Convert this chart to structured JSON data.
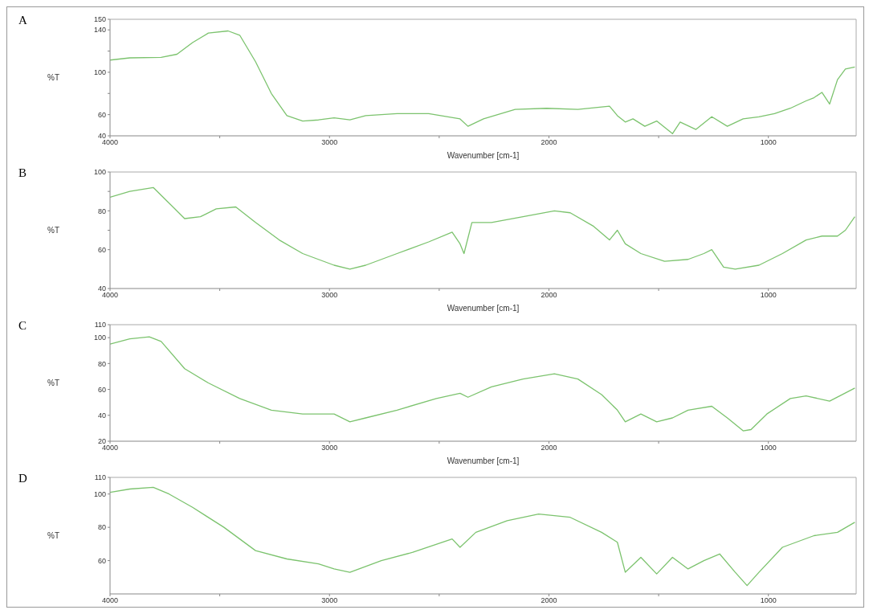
{
  "chart_data": [
    {
      "type": "line",
      "title": "A",
      "xlabel": "Wavenumber [cm-1]",
      "ylabel": "%T",
      "xlim": [
        4000,
        600
      ],
      "xticks": [
        4000,
        {
          "value": 3500,
          "label": null
        },
        3000,
        {
          "value": 2500,
          "label": null
        },
        2000,
        {
          "value": 1500,
          "label": null
        },
        1000
      ],
      "ylim": [
        40,
        150
      ],
      "yticks": [
        40,
        60,
        {
          "value": 80,
          "label": null
        },
        100,
        {
          "value": 120,
          "label": null
        },
        140,
        150
      ],
      "x": [
        4000,
        3910,
        3767,
        3695,
        3624,
        3552,
        3462,
        3409,
        3337,
        3265,
        3194,
        3122,
        3050,
        2979,
        2907,
        2835,
        2692,
        2548,
        2405,
        2369,
        2298,
        2154,
        2011,
        1868,
        1724,
        1688,
        1652,
        1617,
        1563,
        1509,
        1437,
        1402,
        1330,
        1258,
        1187,
        1115,
        1043,
        972,
        900,
        828,
        792,
        756,
        721,
        685,
        649,
        606
      ],
      "series": [
        {
          "color": "#7cc36e",
          "values": [
            111.5,
            113.6,
            114,
            117,
            128,
            137,
            139,
            135,
            110,
            80,
            59,
            54,
            55,
            57,
            55,
            59,
            61,
            61,
            56,
            49,
            56,
            65,
            66,
            65,
            68,
            59,
            53,
            56,
            49,
            54,
            42,
            53,
            46,
            58,
            49,
            56,
            58,
            61,
            66,
            73,
            76,
            81,
            70,
            93,
            103,
            105
          ]
        }
      ]
    },
    {
      "type": "line",
      "title": "B",
      "xlabel": "Wavenumber [cm-1]",
      "ylabel": "%T",
      "xlim": [
        4000,
        600
      ],
      "xticks": [
        4000,
        {
          "value": 3500,
          "label": null
        },
        3000,
        {
          "value": 2500,
          "label": null
        },
        2000,
        {
          "value": 1500,
          "label": null
        },
        1000
      ],
      "ylim": [
        40,
        100
      ],
      "yticks": [
        40,
        60,
        {
          "value": 70,
          "label": null
        },
        80,
        {
          "value": 90,
          "label": null
        },
        100
      ],
      "x": [
        4000,
        3910,
        3803,
        3731,
        3660,
        3588,
        3516,
        3427,
        3337,
        3229,
        3122,
        2979,
        2907,
        2835,
        2692,
        2548,
        2441,
        2405,
        2387,
        2351,
        2262,
        2118,
        1975,
        1903,
        1796,
        1724,
        1688,
        1652,
        1581,
        1473,
        1366,
        1294,
        1258,
        1204,
        1151,
        1043,
        936,
        828,
        756,
        685,
        649,
        606
      ],
      "series": [
        {
          "color": "#7cc36e",
          "values": [
            87,
            90,
            92,
            84,
            76,
            77,
            81,
            82,
            74,
            65,
            58,
            52,
            50,
            52,
            58,
            64,
            69,
            63,
            58,
            74,
            74,
            77,
            80,
            79,
            72,
            65,
            70,
            63,
            58,
            54,
            55,
            58,
            60,
            51,
            50,
            52,
            58,
            65,
            67,
            67,
            70,
            77
          ]
        }
      ]
    },
    {
      "type": "line",
      "title": "C",
      "xlabel": "Wavenumber [cm-1]",
      "ylabel": "%T",
      "xlim": [
        4000,
        600
      ],
      "xticks": [
        4000,
        {
          "value": 3500,
          "label": null
        },
        3000,
        {
          "value": 2500,
          "label": null
        },
        2000,
        {
          "value": 1500,
          "label": null
        },
        1000
      ],
      "ylim": [
        20,
        110
      ],
      "yticks": [
        20,
        40,
        60,
        80,
        100,
        110
      ],
      "x": [
        4000,
        3910,
        3821,
        3767,
        3660,
        3552,
        3409,
        3265,
        3122,
        2979,
        2907,
        2835,
        2692,
        2513,
        2405,
        2369,
        2262,
        2118,
        1975,
        1868,
        1760,
        1688,
        1652,
        1581,
        1509,
        1437,
        1366,
        1258,
        1187,
        1115,
        1079,
        1007,
        900,
        828,
        721,
        606
      ],
      "series": [
        {
          "color": "#7cc36e",
          "values": [
            95,
            99,
            100.6,
            97,
            76,
            65,
            53,
            44,
            41,
            41,
            35,
            38,
            44,
            53,
            57,
            54,
            62,
            68,
            72,
            68,
            56,
            44,
            35,
            41,
            35,
            38,
            44,
            47,
            38,
            28,
            29,
            41,
            53,
            55,
            51,
            61
          ]
        }
      ]
    },
    {
      "type": "line",
      "title": "D",
      "ylabel": "%T",
      "xlim": [
        4000,
        600
      ],
      "xticks": [
        4000,
        {
          "value": 3500,
          "label": null
        },
        3000,
        {
          "value": 2500,
          "label": null
        },
        2000,
        {
          "value": 1500,
          "label": null
        },
        1000
      ],
      "ylim": [
        40,
        110
      ],
      "yticks": [
        60,
        80,
        100,
        110
      ],
      "x": [
        4000,
        3910,
        3803,
        3731,
        3624,
        3481,
        3337,
        3194,
        3050,
        2979,
        2907,
        2764,
        2620,
        2441,
        2405,
        2333,
        2190,
        2047,
        1903,
        1760,
        1688,
        1652,
        1581,
        1509,
        1437,
        1366,
        1294,
        1222,
        1151,
        1097,
        1043,
        936,
        792,
        685,
        606
      ],
      "series": [
        {
          "color": "#7cc36e",
          "values": [
            101,
            103,
            104,
            100,
            92,
            80,
            66,
            61,
            58,
            55,
            53,
            60,
            65,
            73,
            68,
            77,
            84,
            88,
            86,
            77,
            71,
            53,
            62,
            52,
            62,
            55,
            60,
            64,
            53,
            45,
            53,
            68,
            75,
            77,
            83
          ]
        }
      ]
    }
  ]
}
